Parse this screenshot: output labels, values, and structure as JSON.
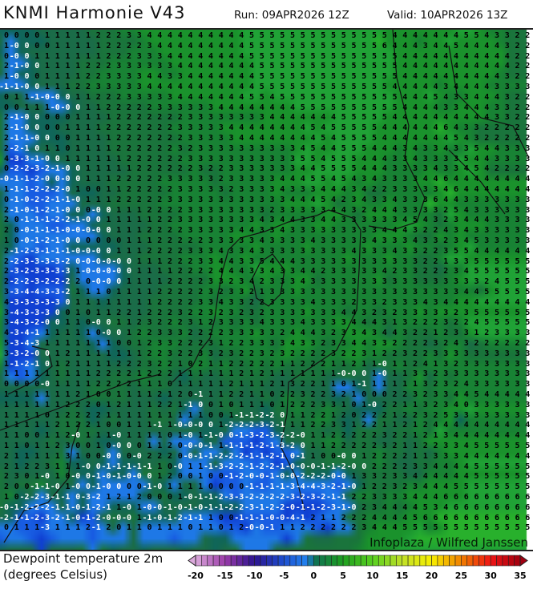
{
  "header": {
    "title": "KNMI Harmonie V43",
    "run": "Run: 09APR2026 12Z",
    "valid": "Valid: 10APR2026 13Z"
  },
  "map": {
    "parameter": "Dewpoint temperature 2m",
    "units": "(degrees Celsius)",
    "watermark": "Infoplaza / Wilfred Janssen",
    "grid_values": [
      "0 0 0 0 1 1 1 1 1 2 2 2 3 3 4 4 4 4 4 4 4 4 4 4 5 5 5 5 5 5 5 5 5 5 5 5 5 5 4 4 4 4 4 4 4 5 5 4 3 3 2 2",
      "1 -0 0 0 0 1 1 1 1 1 2 2 2 2 3 4 4 4 4 4 4 4 4 4 5 5 5 5 5 5 5 5 5 5 5 5 5 6 4 4 4 3 4 4 5 4 4 4 4 3 2 2",
      "0 -0 0 1 1 1 1 1 1 1 2 2 2 3 3 3 4 4 4 4 4 4 4 4 5 5 5 5 5 5 5 5 5 5 5 5 5 5 5 4 4 4 4 4 4 4 4 4 4 4 2 2",
      "2 -1 -0 0 1 1 1 1 2 2 2 3 3 3 3 3 3 4 4 4 4 4 4 4 4 5 5 5 5 5 5 5 5 5 5 5 5 5 5 4 4 4 4 4 4 4 4 4 4 4 2 2",
      "1 -0 0 0 1 1 1 1 2 2 3 3 3 3 4 4 3 3 4 4 4 4 4 4 4 5 5 5 5 5 5 5 5 5 5 5 5 5 5 4 4 4 4 4 4 4 4 4 4 3 2 2",
      "-1 -1 -0 0 1 1 1 2 2 3 3 3 3 3 4 4 4 4 4 4 4 4 4 4 4 5 5 5 5 5 5 5 5 5 5 5 5 5 4 4 4 4 4 3 4 4 4 4 3 3 3 3",
      "0 1 1 -1 -0 -0 0 1 1 2 2 2 3 3 3 3 3 4 4 4 4 4 4 4 5 5 4 5 5 5 5 5 5 5 5 5 5 5 5 4 4 4 5 4 3 3 4 4 4 3 2 2",
      "0 0 1 1 1 -0 -0 0 1 1 2 2 2 2 2 3 3 3 3 3 3 4 4 4 4 4 4 4 4 5 5 5 5 5 5 5 5 5 5 4 4 4 4 3 3 4 4 4 3 3 2 2",
      "2 -1 -0 0 0 0 0 1 1 1 1 2 2 2 2 2 2 2 3 3 3 3 3 3 3 3 4 4 4 4 4 4 4 5 5 5 5 5 4 4 4 4 4 4 4 4 4 4 3 3 2 2",
      "2 -1 -0 0 0 0 1 1 1 1 2 2 2 2 2 2 2 3 3 3 3 3 4 4 4 4 4 4 4 4 5 4 5 5 5 5 5 4 4 4 4 4 4 6 4 3 3 2 2 2 2 2",
      "2 -1 -1 -0 0 0 0 1 1 1 1 2 2 2 2 2 2 2 3 3 3 3 3 4 4 4 4 4 4 4 4 5 4 5 5 5 5 4 4 4 4 4 4 4 5 4 3 2 2 2 2 2",
      "2 -2 -1 0 1 1 0 1 1 1 1 2 2 2 2 2 2 3 2 3 3 3 3 3 3 3 3 3 3 4 5 4 4 5 5 5 4 4 4 3 4 3 3 4 3 3 5 4 4 3 3 3",
      "4 -3 -3 -1 -0 0 1 1 1 1 1 1 2 2 2 2 2 2 3 3 3 3 3 3 3 3 3 3 3 5 5 4 5 5 5 4 4 4 3 3 4 3 3 3 3 5 4 4 3 3 3 3",
      "0 -2 -2 -3 -2 -1 -0 0 1 1 1 1 1 2 2 2 2 2 2 3 2 2 3 3 3 3 3 3 3 4 4 5 5 5 5 4 4 4 3 3 3 3 4 3 3 4 5 4 2 2 2 2",
      "-0 -1 -1 -2 -0 0 -0 0 1 1 1 2 2 2 2 2 3 3 3 3 3 2 3 3 3 3 3 4 4 4 5 5 4 5 4 3 4 3 3 3 3 4 4 6 4 4 4 4 4 4 4 4",
      "1 -1 -1 -2 -2 -2 -0 1 0 0 1 1 2 2 2 2 2 3 3 3 3 3 2 3 3 3 3 4 3 3 3 4 4 4 3 4 2 2 3 3 3 3 3 4 6 4 4 4 4 4 4 4",
      "0 -1 -0 -2 -2 -1 -1 -0 1 1 1 2 2 2 2 2 3 3 3 3 3 3 3 3 3 3 3 3 4 4 4 5 4 2 3 4 3 3 4 3 3 3 6 4 4 3 3 3 3 3 3 3",
      "2 -1 -0 -1 -2 -1 -0 0 0 -0 0 1 1 1 2 2 2 2 3 3 3 3 3 3 3 3 2 3 3 3 3 3 4 4 3 2 4 4 4 3 3 3 3 2 5 4 3 3 3 3 3 3",
      "2 0 -1 -1 -1 -2 -2 -1 -0 0 1 1 1 1 1 2 2 3 3 3 3 3 3 3 3 4 3 4 4 3 3 4 4 3 3 3 3 3 3 4 5 4 3 2 3 4 4 4 3 3 3 3",
      "2 0 -0 -1 -1 -1 -0 -0 -0 -0 0 1 1 1 2 2 2 2 3 3 3 3 3 4 4 3 3 4 3 3 3 3 3 3 3 3 3 4 4 4 3 2 2 4 3 4 3 3 3 3 3 3",
      "1 0 -0 -1 -2 -1 -0 0 0 0 0 0 1 1 1 2 2 2 2 2 3 3 3 3 3 4 3 3 3 3 4 3 3 3 3 3 4 3 3 3 4 3 3 2 3 4 5 3 3 3 3 3",
      "2 -1 -2 -3 -1 -1 -1 -0 -0 -0 0 1 1 1 2 2 2 2 3 3 3 4 3 3 4 3 3 3 3 3 3 3 3 3 4 3 3 3 4 3 3 2 2 3 5 5 4 4 4 4 4 4",
      "2 -2 -3 -3 -3 -3 -2 0 -0 -0 -0 -0 0 1 1 1 2 2 2 3 3 4 4 3 3 5 4 4 4 3 3 3 3 3 3 3 3 3 3 3 3 2 2 1 3 3 5 5 5 5 5 5",
      "2 -3 -2 -3 -3 -3 -3 1 -0 -0 -0 -0 0 1 1 1 1 2 2 2 2 4 4 4 3 3 4 3 3 4 4 2 3 3 3 3 3 4 2 3 3 2 2 2 3 4 5 5 5 5 5 5",
      "2 -2 -2 -3 -2 -2 -2 2 0 -0 -0 0 1 1 1 1 2 2 2 2 3 3 2 3 4 2 3 3 3 4 3 3 3 3 3 3 3 3 3 3 3 3 3 3 3 3 3 2 4 5 5 5",
      "3 -3 -4 -4 -3 -3 -2 1 1 1 0 1 1 1 1 2 2 2 2 2 3 2 3 3 2 1 3 3 3 3 3 3 3 3 3 3 3 3 3 3 3 3 3 3 3 4 4 5 5 5 5 5",
      "4 -3 -3 -3 -3 -3 0 1 1 1 1 1 1 1 1 2 2 2 2 3 3 4 3 3 2 2 3 3 3 3 4 3 3 3 2 3 3 2 3 3 3 4 3 4 4 4 4 4 4 4 4 4",
      "3 -4 -3 -3 -3 0 0 1 0 1 1 2 2 1 2 2 2 3 2 2 3 2 3 2 3 2 3 3 3 3 3 3 3 4 4 3 2 3 2 3 3 3 3 3 2 3 5 5 5 5 5 5",
      "3 -4 -3 -2 -0 0 1 1 0 -0 0 1 1 2 3 2 2 2 3 1 2 3 3 3 3 4 3 3 3 4 3 3 3 3 4 4 4 3 1 3 2 2 2 3 2 2 4 5 5 5 5 5",
      "4 -3 -4 -1 1 1 1 1 1 0 -0 0 1 2 2 3 3 3 2 2 2 2 3 3 3 3 3 2 4 4 4 3 2 3 3 4 3 4 4 3 2 2 1 2 3 3 1 2 3 3 3 3",
      "5 -3 -4 -3 1 1 1 1 1 1 1 0 0 1 2 3 3 2 2 2 3 1 2 2 3 3 3 3 4 3 3 2 3 3 4 4 3 3 2 2 2 2 3 2 4 3 2 2 2 2 2 2",
      "3 -3 -2 -0 0 1 2 1 1 1 1 1 1 1 2 2 3 2 2 3 3 2 3 2 2 3 2 3 2 2 2 2 3 2 2 3 1 2 2 3 2 2 3 3 3 3 3 3 3 3 3 3",
      "1 -1 -2 -1 0 1 2 1 1 1 1 2 2 2 3 2 2 1 0 2 1 1 2 2 2 2 2 1 1 2 2 2 1 1 2 1 1 -0 1 1 2 4 1 3 2 3 3 3 3 3 3 3",
      "1 1 1 1 1 1 1 1 1 2 2 2 2 1 2 2 2 1 1 1 1 1 1 2 1 2 1 1 1 1 1 1 1 -0 -0 0 1 -0 1 1 3 3 2 3 3 3 3 3 3 3 3 3",
      "0 0 0 0 -0 1 1 1 1 2 2 2 2 1 1 1 0 1 1 1 1 1 2 1 1 1 2 1 3 2 2 1 1 0 1 -1 1 1 1 1 1 3 2 3 2 4 3 3 3 3 3 3",
      "1 1 1 1 1 1 1 2 1 0 0 1 1 1 1 2 1 2 0 -1 1 1 2 2 1 1 0 2 2 3 2 2 3 2 1 0 0 0 2 2 3 2 3 3 4 4 5 4 4 4 4 4",
      "1 1 1 1 1 1 2 2 2 0 1 2 1 1 1 2 2 1 -1 0 0 1 0 1 1 1 0 1 2 2 2 3 3 1 0 1 -0 2 2 1 1 3 2 3 4 0 3 3 3 3 3 3",
      "1 1 1 1 0 1 2 2 2 2 1 1 1 1 1 1 1 1 1 1 0 0 1 -1 -1 -2 -2 0 1 1 2 2 1 2 0 2 2 2 1 2 2 3 2 5 3 3 3 3 3 3 3 3",
      "1 1 1 1 1 2 1 2 2 1 0 0 1 1 1 -1 1 -0 -0 -0 0 1 -2 -2 -2 -3 -2 -1 1 1 2 2 3 3 1 2 2 1 1 2 1 2 4 4 4 4 4 4 4 4 4 4",
      "1 1 0 0 1 1 2 -0 1 1 1 -0 1 1 1 1 0 1 -0 1 -1 -0 0 -1 -3 -2 -3 -2 -2 -0 1 1 2 2 2 2 2 3 2 2 1 2 1 3 4 4 4 4 4 4 4 4",
      "1 1 0 1 1 2 3 0 0 1 0 -0 0 0 1 1 2 0 -0 -0 -1 1 -1 -1 -1 -2 -1 -3 -2 0 1 1 2 2 2 2 2 3 2 1 1 2 2 3 3 4 5 5 5 5 5 5",
      "2 1 1 1 1 1 3 1 0 0 -0 0 0 -0 2 2 2 0 -0 -1 -1 -2 -2 -2 -1 -1 -2 -1 0 -1 1 0 0 -0 0 1 2 2 2 2 1 1 3 3 3 4 4 4 4 4 4 4",
      "2 1 2 2 3 1 1 1 -0 0 -1 -1 -1 -1 -1 1 0 -0 1 1 -1 -3 -2 -2 -1 -2 -2 -1 -0 -0 -0 -1 -1 -2 -0 0 2 2 2 2 3 3 4 4 4 4 5 5 5 5 5 5",
      "2 3 0 1 -0 1 0 -0 0 -1 -0 -1 -0 -0 0 1 2 0 0 1 0 0 -1 -2 -0 -0 -1 -0 -0 -2 -2 -2 -0 -0 1 3 3 2 3 3 4 4 4 4 4 4 5 5 5 5 5 5",
      "2 0 0 -1 -1 -0 1 -0 0 -1 -0 0 0 0 -1 -0 1 1 1 1 0 0 0 0 -1 -1 -1 -1 -3 -4 -4 -3 -2 -1 -0 1 2 2 3 2 3 4 4 4 5 5 5 5 5 5 5 5",
      "1 0 -2 -2 -3 -1 -1 0 -3 -2 1 2 1 2 0 0 0 1 -0 -1 -1 -2 -3 -3 -2 -2 -2 -2 -3 -2 -3 -2 -1 -1 2 2 3 3 3 3 4 4 4 6 6 6 6 6 6 6 6 6",
      "-0 -1 -2 -2 -2 -1 -1 -0 -1 -2 -1 1 -0 1 -0 -0 -1 -0 -1 -0 -1 -1 -2 -2 -3 -1 -2 -2 -0 -1 -1 -2 -3 -1 -0 2 3 4 4 4 4 5 3 4 6 6 6 6 6 6 6 6",
      "-2 -1 -1 -2 -3 -2 -1 -0 -1 -2 -0 -0 -0 1 -1 -0 -1 -2 -1 -1 1 0 0 -1 -1 -1 -0 -0 -4 -1 2 1 1 2 2 2 4 4 4 4 5 6 6 6 6 6 6 6 6 6 6 6",
      "0 1 1 1 -3 1 1 1 2 -1 2 0 1 1 0 1 1 1 0 1 1 0 1 2 -0 -0 -1 1 1 2 2 2 2 2 2 3 4 4 4 5 5 5 5 5 5 5 5 5 5 5 5 5"
    ]
  },
  "colorbar": {
    "min": -20,
    "max": 35,
    "step": 1,
    "tick_labels": [
      "-20",
      "-15",
      "-10",
      "-5",
      "0",
      "5",
      "10",
      "15",
      "20",
      "25",
      "30",
      "35"
    ],
    "stops": [
      [
        -20,
        "#dcaadc"
      ],
      [
        -15,
        "#9a3aa8"
      ],
      [
        -10,
        "#2c1490"
      ],
      [
        -5,
        "#1e50d0"
      ],
      [
        -1,
        "#2284f0"
      ],
      [
        0,
        "#0e6e56"
      ],
      [
        5,
        "#1ea020"
      ],
      [
        10,
        "#58d020"
      ],
      [
        15,
        "#c0e028"
      ],
      [
        20,
        "#f8f000"
      ],
      [
        25,
        "#f08000"
      ],
      [
        30,
        "#f01414"
      ],
      [
        35,
        "#a00010"
      ]
    ]
  },
  "map_colors": {
    "cold": "#1e78e6",
    "zero": "#10665a",
    "mild": "#1a6c48",
    "warm": "#1a9430",
    "text_dark": "#000000",
    "text_light": "#ffffff"
  }
}
